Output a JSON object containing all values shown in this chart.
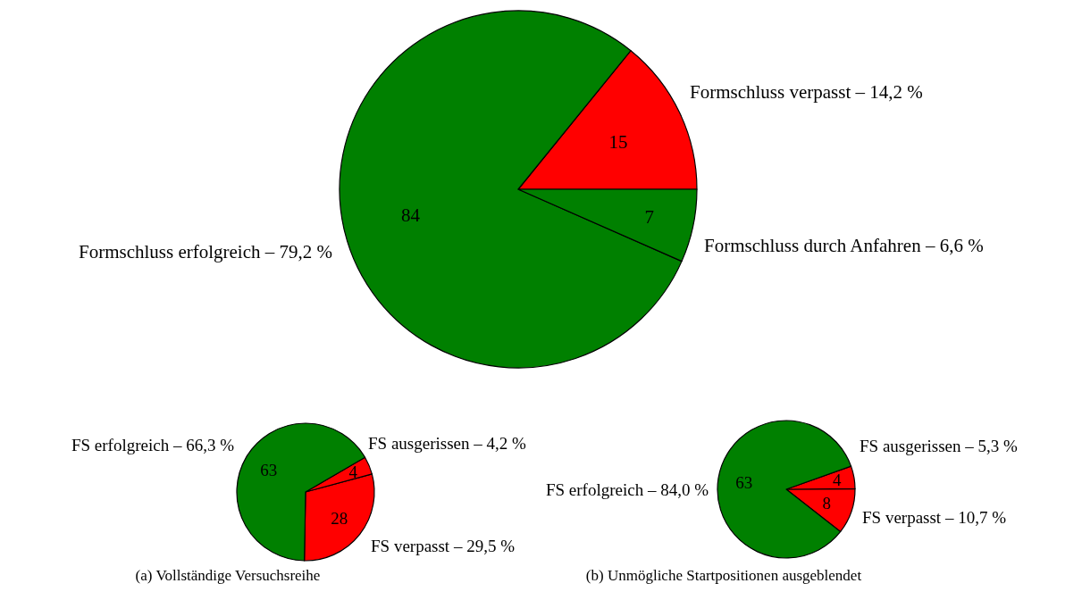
{
  "chart_data": [
    {
      "type": "pie",
      "categories": [
        "Formschluss verpasst – 14,2 %",
        "Formschluss erfolgreich – 79,2 %",
        "Formschluss durch Anfahren – 6,6 %"
      ],
      "values": [
        15,
        84,
        7
      ],
      "colors": [
        "#ff0000",
        "#008000",
        "#008000"
      ],
      "data_labels": true,
      "legend": false
    },
    {
      "type": "pie",
      "categories": [
        "FS verpasst – 29,5 %",
        "FS ausgerissen – 4,2 %",
        "FS erfolgreich – 66,3 %"
      ],
      "values": [
        28,
        4,
        63
      ],
      "colors": [
        "#ff0000",
        "#ff0000",
        "#008000"
      ],
      "data_labels": true,
      "legend": false,
      "annotations": [
        "(a) Vollständige Versuchsreihe"
      ]
    },
    {
      "type": "pie",
      "categories": [
        "FS verpasst – 10,7 %",
        "FS ausgerissen – 5,3 %",
        "FS erfolgreich – 84,0 %"
      ],
      "values": [
        8,
        4,
        63
      ],
      "colors": [
        "#ff0000",
        "#ff0000",
        "#008000"
      ],
      "data_labels": true,
      "legend": false,
      "annotations": [
        "(b) Unmögliche Startpositionen ausgeblendet"
      ]
    }
  ]
}
